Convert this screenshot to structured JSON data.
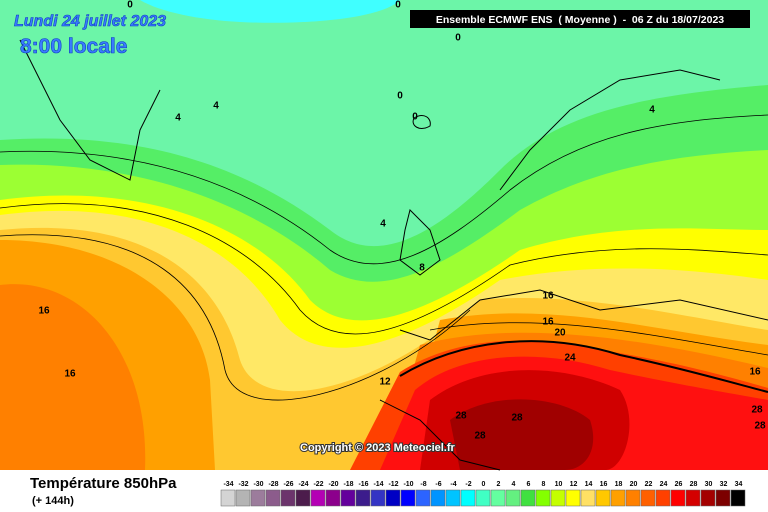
{
  "header": {
    "date": "Lundi 24 juillet 2023",
    "time": "8:00 locale",
    "model": "Ensemble ECMWF ENS  ( Moyenne )  -  06 Z du 18/07/2023"
  },
  "map": {
    "contour_labels": [
      "0",
      "0",
      "0",
      "0",
      "0",
      "4",
      "4",
      "4",
      "4",
      "8",
      "12",
      "16",
      "16",
      "16",
      "16",
      "16",
      "20",
      "24",
      "28",
      "28",
      "28",
      "28",
      "28"
    ],
    "copyright": "Copyright © 2023 Meteociel.fr"
  },
  "legend": {
    "title": "Température 850hPa",
    "subtitle": "(+ 144h)",
    "scale": [
      -34,
      -32,
      -30,
      -28,
      -26,
      -24,
      -22,
      -20,
      -18,
      -16,
      -14,
      -12,
      -10,
      -8,
      -6,
      -4,
      -2,
      0,
      2,
      4,
      6,
      8,
      10,
      12,
      14,
      16,
      18,
      20,
      22,
      24,
      26,
      28,
      30,
      32,
      34
    ],
    "colors": [
      "#d4d4d4",
      "#b4b4b4",
      "#9c7c9c",
      "#8c5c8c",
      "#6c346c",
      "#4c1c4c",
      "#b400b4",
      "#8c008c",
      "#64009c",
      "#3c1c8c",
      "#3434c4",
      "#0000c4",
      "#0000ff",
      "#2c64ff",
      "#0094ff",
      "#00c4ff",
      "#00ffff",
      "#40ffc4",
      "#64ffa0",
      "#64f080",
      "#40e040",
      "#84ff00",
      "#c4ff00",
      "#ffff00",
      "#ffe064",
      "#ffc800",
      "#ffa000",
      "#ff8000",
      "#ff6000",
      "#ff4000",
      "#ff0000",
      "#d40000",
      "#a40000",
      "#7c0000",
      "#000000"
    ]
  }
}
